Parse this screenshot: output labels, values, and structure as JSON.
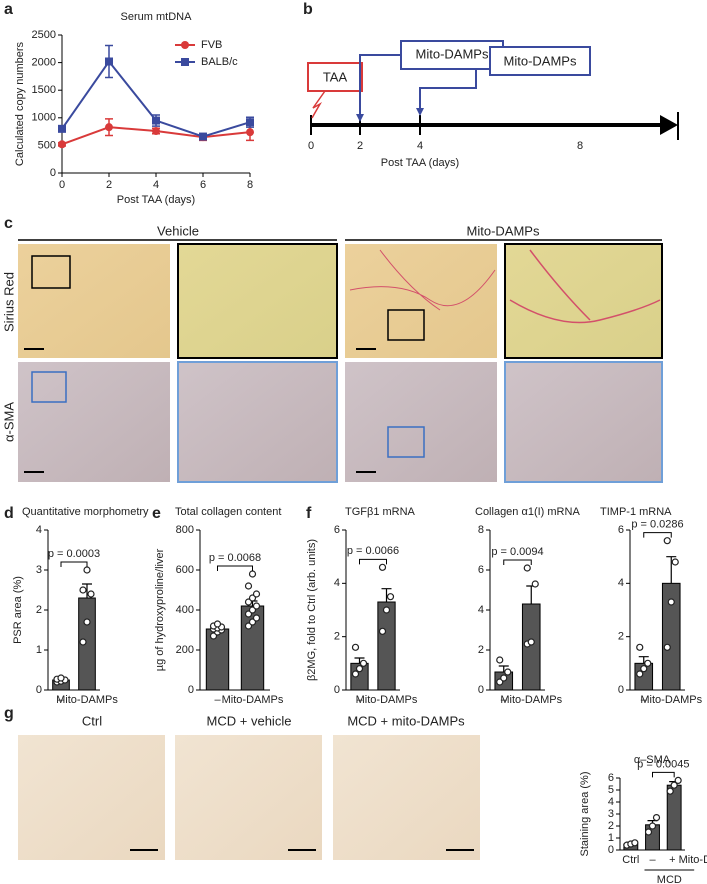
{
  "figure": {
    "panels": [
      "a",
      "b",
      "c",
      "d",
      "e",
      "f",
      "g"
    ]
  },
  "timeline": {
    "start_box": "TAA",
    "boxes": [
      "Mito-DAMPs",
      "Mito-DAMPs"
    ],
    "ticks": [
      "0",
      "2",
      "4",
      "8"
    ],
    "xlabel": "Post TAA (days)"
  },
  "histology": {
    "columns": [
      "Vehicle",
      "Mito-DAMPs"
    ],
    "rows": [
      "Sirius Red",
      "α-SMA"
    ]
  },
  "mcd_images": {
    "labels": [
      "Ctrl",
      "MCD + vehicle",
      "MCD + mito-DAMPs"
    ]
  },
  "chart_data": [
    {
      "type": "line",
      "title": "Serum mtDNA",
      "xlabel": "Post TAA (days)",
      "ylabel": "Calculated copy numbers",
      "x": [
        0,
        2,
        4,
        6,
        8
      ],
      "xlim": [
        0,
        8
      ],
      "xticks": [
        0,
        2,
        4,
        6,
        8
      ],
      "ylim": [
        0,
        2500
      ],
      "yticks": [
        0,
        500,
        1000,
        1500,
        2000,
        2500
      ],
      "legend": "upper right",
      "series": [
        {
          "name": "FVB",
          "color": "#d93a3a",
          "marker": "circle",
          "values": [
            520,
            830,
            760,
            650,
            740
          ],
          "errors": [
            30,
            150,
            50,
            60,
            150
          ]
        },
        {
          "name": "BALB/c",
          "color": "#3a4a9e",
          "marker": "square",
          "values": [
            800,
            2020,
            950,
            660,
            920
          ],
          "errors": [
            50,
            290,
            100,
            50,
            90
          ]
        }
      ]
    },
    {
      "type": "bar",
      "title": "Quantitative morphometry",
      "ylabel": "PSR area (%)",
      "categories": [
        "–",
        "Mito-DAMPs"
      ],
      "values": [
        0.25,
        2.3
      ],
      "errors": [
        0.03,
        0.35
      ],
      "points": [
        [
          0.2,
          0.22,
          0.25,
          0.27,
          0.3
        ],
        [
          1.2,
          1.7,
          2.4,
          2.5,
          3.0
        ]
      ],
      "color": "#555555",
      "ylim": [
        0,
        4
      ],
      "yticks": [
        0,
        1,
        2,
        3,
        4
      ],
      "annotation": "p = 0.0003"
    },
    {
      "type": "bar",
      "title": "Total collagen content",
      "ylabel": "µg of hydroxyproline/liver",
      "categories": [
        "–",
        "Mito-DAMPs"
      ],
      "values": [
        305,
        420
      ],
      "errors": [
        10,
        25
      ],
      "points": [
        [
          270,
          290,
          300,
          305,
          310,
          315,
          320,
          330
        ],
        [
          320,
          340,
          360,
          380,
          400,
          420,
          440,
          460,
          480,
          520,
          580
        ]
      ],
      "color": "#555555",
      "ylim": [
        0,
        800
      ],
      "yticks": [
        0,
        200,
        400,
        600,
        800
      ],
      "annotation": "p = 0.0068"
    },
    {
      "type": "bar",
      "title": "TGFβ1 mRNA",
      "ylabel": "β2MG, fold to Ctrl (arb. units)",
      "categories": [
        "–",
        "Mito-DAMPs"
      ],
      "values": [
        1.0,
        3.3
      ],
      "errors": [
        0.2,
        0.5
      ],
      "points": [
        [
          0.6,
          0.8,
          1.0,
          1.6
        ],
        [
          2.2,
          3.0,
          3.5,
          4.6
        ]
      ],
      "color": "#555555",
      "ylim": [
        0,
        6
      ],
      "yticks": [
        0,
        2,
        4,
        6
      ],
      "annotation": "p = 0.0066"
    },
    {
      "type": "bar",
      "title": "Collagen α1(I) mRNA",
      "categories": [
        "–",
        "Mito-DAMPs"
      ],
      "values": [
        0.9,
        4.3
      ],
      "errors": [
        0.3,
        0.9
      ],
      "points": [
        [
          0.4,
          0.6,
          0.9,
          1.5
        ],
        [
          2.3,
          2.4,
          5.3,
          6.1
        ]
      ],
      "color": "#555555",
      "ylim": [
        0,
        8
      ],
      "yticks": [
        0,
        2,
        4,
        6,
        8
      ],
      "annotation": "p = 0.0094"
    },
    {
      "type": "bar",
      "title": "TIMP-1 mRNA",
      "categories": [
        "–",
        "Mito-DAMPs"
      ],
      "values": [
        1.0,
        4.0
      ],
      "errors": [
        0.25,
        1.0
      ],
      "points": [
        [
          0.6,
          0.8,
          1.0,
          1.6
        ],
        [
          1.6,
          3.3,
          4.8,
          5.6
        ]
      ],
      "color": "#555555",
      "ylim": [
        0,
        6
      ],
      "yticks": [
        0,
        2,
        4,
        6
      ],
      "annotation": "p = 0.0286"
    },
    {
      "type": "bar",
      "title": "α–SMA",
      "ylabel": "Staining area (%)",
      "categories": [
        "Ctrl",
        "–",
        "+ Mito-DAMPs"
      ],
      "values": [
        0.5,
        2.1,
        5.4
      ],
      "errors": [
        0.15,
        0.35,
        0.3
      ],
      "points": [
        [
          0.4,
          0.5,
          0.6
        ],
        [
          1.5,
          2.0,
          2.7
        ],
        [
          4.9,
          5.4,
          5.8
        ]
      ],
      "color": "#555555",
      "ylim": [
        0,
        6
      ],
      "yticks": [
        0,
        1,
        2,
        3,
        4,
        5,
        6
      ],
      "annotation": "p = 0.0045",
      "group_label": "MCD"
    }
  ]
}
